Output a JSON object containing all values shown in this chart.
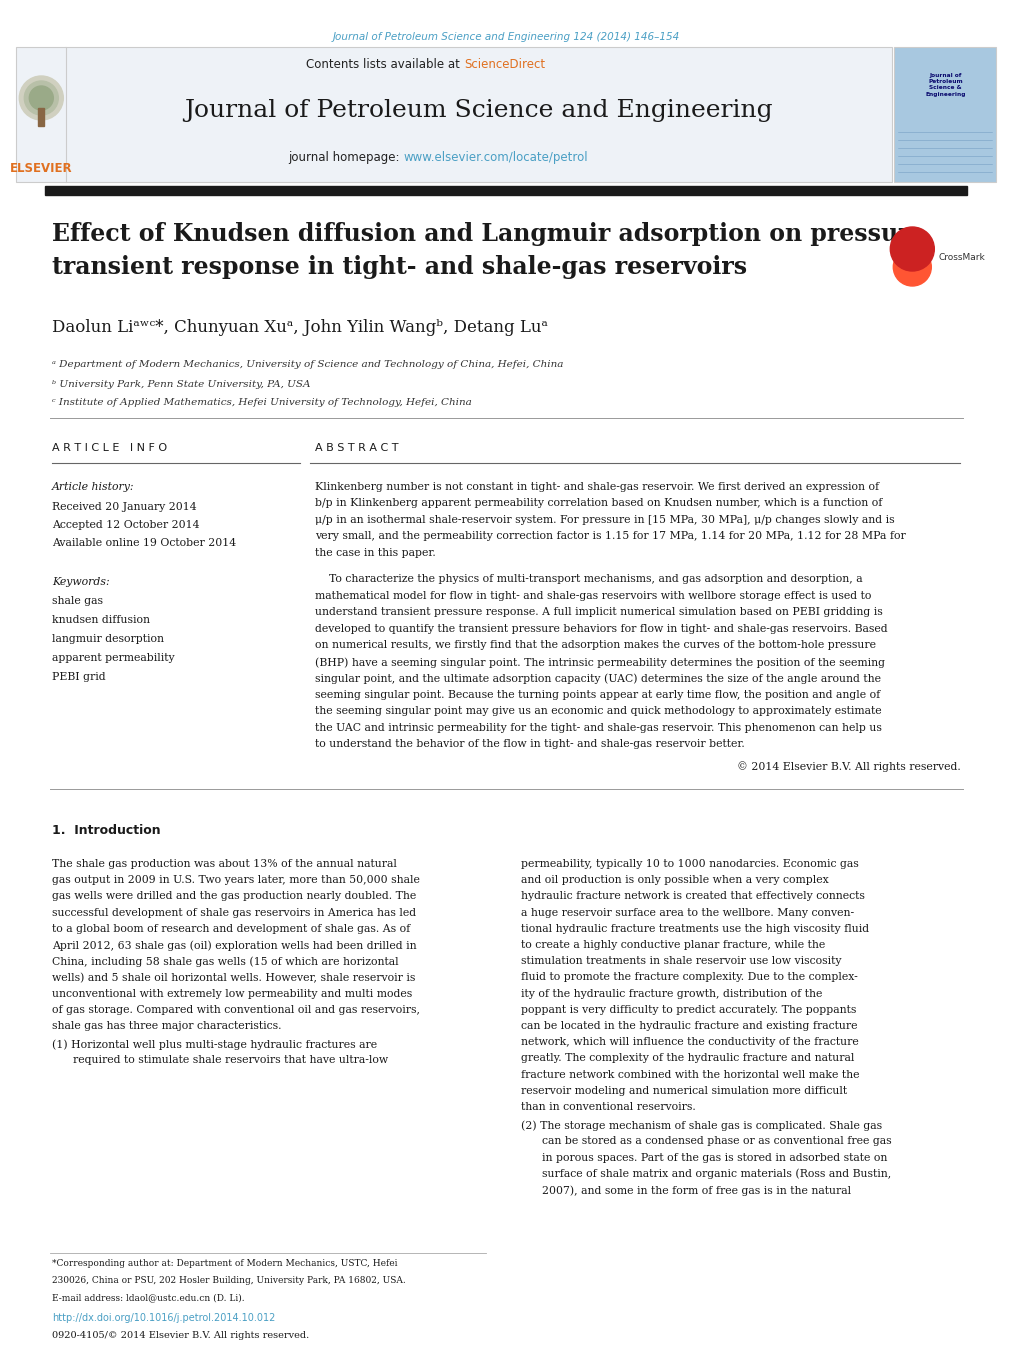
{
  "page_width": 9.92,
  "page_height": 13.23,
  "bg_color": "#ffffff",
  "top_journal_ref": "Journal of Petroleum Science and Engineering 124 (2014) 146–154",
  "top_journal_color": "#4a9fc4",
  "header_bg": "#eef2f7",
  "header_border_color": "#cccccc",
  "science_direct_color": "#e07020",
  "journal_title": "Journal of Petroleum Science and Engineering",
  "journal_title_size": 18,
  "journal_homepage_url": "www.elsevier.com/locate/petrol",
  "journal_homepage_color": "#4a9fc4",
  "thick_bar_color": "#1a1a1a",
  "paper_title": "Effect of Knudsen diffusion and Langmuir adsorption on pressure\ntransient response in tight- and shale-gas reservoirs",
  "paper_title_size": 17,
  "authors_size": 12,
  "affil_a": "ᵃ Department of Modern Mechanics, University of Science and Technology of China, Hefei, China",
  "affil_b": "ᵇ University Park, Penn State University, PA, USA",
  "affil_c": "ᶜ Institute of Applied Mathematics, Hefei University of Technology, Hefei, China",
  "affil_color": "#333333",
  "article_info_title": "A R T I C L E   I N F O",
  "abstract_title": "A B S T R A C T",
  "section_title_size": 8.0,
  "received": "Received 20 January 2014",
  "accepted": "Accepted 12 October 2014",
  "available": "Available online 19 October 2014",
  "keywords": [
    "shale gas",
    "knudsen diffusion",
    "langmuir desorption",
    "apparent permeability",
    "PEBI grid"
  ],
  "abstract_copyright": "© 2014 Elsevier B.V. All rights reserved.",
  "intro_title": "1.  Introduction",
  "intro_title_size": 9,
  "footer_doi": "http://dx.doi.org/10.1016/j.petrol.2014.10.012",
  "footer_issn": "0920-4105/© 2014 Elsevier B.V. All rights reserved.",
  "footer_doi_color": "#4a9fc4",
  "elsevier_orange": "#e07020",
  "abs_p1_lines": [
    "Klinkenberg number is not constant in tight- and shale-gas reservoir. We first derived an expression of",
    "b/p in Klinkenberg apparent permeability correlation based on Knudsen number, which is a function of",
    "μ/p in an isothermal shale-reservoir system. For pressure in [15 MPa, 30 MPa], μ/p changes slowly and is",
    "very small, and the permeability correction factor is 1.15 for 17 MPa, 1.14 for 20 MPa, 1.12 for 28 MPa for",
    "the case in this paper."
  ],
  "abs_p2_lines": [
    "    To characterize the physics of multi-transport mechanisms, and gas adsorption and desorption, a",
    "mathematical model for flow in tight- and shale-gas reservoirs with wellbore storage effect is used to",
    "understand transient pressure response. A full implicit numerical simulation based on PEBI gridding is",
    "developed to quantify the transient pressure behaviors for flow in tight- and shale-gas reservoirs. Based",
    "on numerical results, we firstly find that the adsorption makes the curves of the bottom-hole pressure",
    "(BHP) have a seeming singular point. The intrinsic permeability determines the position of the seeming",
    "singular point, and the ultimate adsorption capacity (UAC) determines the size of the angle around the",
    "seeming singular point. Because the turning points appear at early time flow, the position and angle of",
    "the seeming singular point may give us an economic and quick methodology to approximately estimate",
    "the UAC and intrinsic permeability for the tight- and shale-gas reservoir. This phenomenon can help us",
    "to understand the behavior of the flow in tight- and shale-gas reservoir better."
  ],
  "intro_p1_lines": [
    "The shale gas production was about 13% of the annual natural",
    "gas output in 2009 in U.S. Two years later, more than 50,000 shale",
    "gas wells were drilled and the gas production nearly doubled. The",
    "successful development of shale gas reservoirs in America has led",
    "to a global boom of research and development of shale gas. As of",
    "April 2012, 63 shale gas (oil) exploration wells had been drilled in",
    "China, including 58 shale gas wells (15 of which are horizontal",
    "wells) and 5 shale oil horizontal wells. However, shale reservoir is",
    "unconventional with extremely low permeability and multi modes",
    "of gas storage. Compared with conventional oil and gas reservoirs,",
    "shale gas has three major characteristics."
  ],
  "intro_bullet1_lines": [
    "(1) Horizontal well plus multi-stage hydraulic fractures are",
    "      required to stimulate shale reservoirs that have ultra-low"
  ],
  "intro_col2_lines": [
    "permeability, typically 10 to 1000 nanodarcies. Economic gas",
    "and oil production is only possible when a very complex",
    "hydraulic fracture network is created that effectively connects",
    "a huge reservoir surface area to the wellbore. Many conven-",
    "tional hydraulic fracture treatments use the high viscosity fluid",
    "to create a highly conductive planar fracture, while the",
    "stimulation treatments in shale reservoir use low viscosity",
    "fluid to promote the fracture complexity. Due to the complex-",
    "ity of the hydraulic fracture growth, distribution of the",
    "poppant is very difficulty to predict accurately. The poppants",
    "can be located in the hydraulic fracture and existing fracture",
    "network, which will influence the conductivity of the fracture",
    "greatly. The complexity of the hydraulic fracture and natural",
    "fracture network combined with the horizontal well make the",
    "reservoir modeling and numerical simulation more difficult",
    "than in conventional reservoirs."
  ],
  "intro_col2_bullet_lines": [
    "(2) The storage mechanism of shale gas is complicated. Shale gas",
    "      can be stored as a condensed phase or as conventional free gas",
    "      in porous spaces. Part of the gas is stored in adsorbed state on",
    "      surface of shale matrix and organic materials (Ross and Bustin,",
    "      2007), and some in the form of free gas is in the natural"
  ]
}
